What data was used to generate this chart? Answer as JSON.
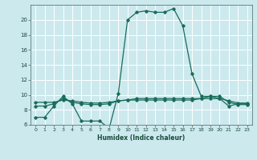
{
  "title": "",
  "xlabel": "Humidex (Indice chaleur)",
  "background_color": "#cce9ee",
  "grid_color": "#b0d5da",
  "line_color": "#1a6b5a",
  "xlim": [
    -0.5,
    23.5
  ],
  "ylim": [
    6,
    22
  ],
  "xticks": [
    0,
    1,
    2,
    3,
    4,
    5,
    6,
    7,
    8,
    9,
    10,
    11,
    12,
    13,
    14,
    15,
    16,
    17,
    18,
    19,
    20,
    21,
    22,
    23
  ],
  "yticks": [
    6,
    8,
    10,
    12,
    14,
    16,
    18,
    20
  ],
  "series": [
    {
      "x": [
        0,
        1,
        2,
        3,
        4,
        5,
        6,
        7,
        8,
        9,
        10,
        11,
        12,
        13,
        14,
        15,
        16,
        17,
        18,
        19,
        20,
        21,
        22,
        23
      ],
      "y": [
        7.0,
        7.0,
        8.5,
        9.8,
        8.8,
        6.5,
        6.5,
        6.5,
        5.5,
        10.2,
        20.0,
        21.0,
        21.2,
        21.0,
        21.0,
        21.5,
        19.2,
        12.8,
        9.8,
        9.8,
        9.5,
        8.5,
        8.8,
        8.8
      ]
    },
    {
      "x": [
        0,
        1,
        2,
        3,
        4,
        5,
        6,
        7,
        8,
        9,
        10,
        11,
        12,
        13,
        14,
        15,
        16,
        17,
        18,
        19,
        20,
        21,
        22,
        23
      ],
      "y": [
        8.5,
        8.5,
        8.8,
        9.5,
        9.0,
        8.8,
        8.7,
        8.7,
        8.8,
        9.2,
        9.3,
        9.3,
        9.3,
        9.3,
        9.3,
        9.3,
        9.3,
        9.3,
        9.5,
        9.8,
        9.8,
        9.0,
        8.7,
        8.7
      ]
    },
    {
      "x": [
        0,
        1,
        2,
        3,
        4,
        5,
        6,
        7,
        8,
        9,
        10,
        11,
        12,
        13,
        14,
        15,
        16,
        17,
        18,
        19,
        20,
        21,
        22,
        23
      ],
      "y": [
        9.0,
        9.0,
        9.0,
        9.3,
        9.2,
        9.0,
        8.9,
        8.9,
        9.0,
        9.2,
        9.3,
        9.5,
        9.5,
        9.5,
        9.5,
        9.5,
        9.5,
        9.5,
        9.5,
        9.5,
        9.5,
        9.2,
        8.9,
        8.9
      ]
    }
  ]
}
